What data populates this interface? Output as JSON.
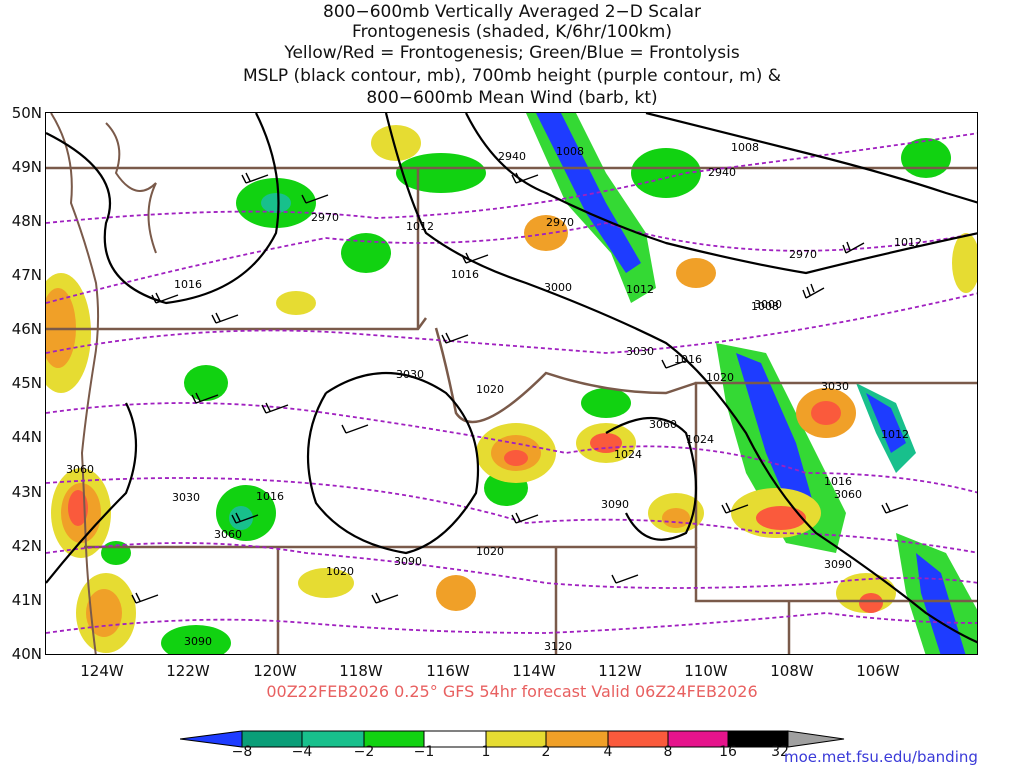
{
  "title_lines": [
    "800−600mb Vertically Averaged 2−D Scalar",
    "Frontogenesis (shaded, K/6hr/100km)",
    "Yellow/Red = Frontogenesis;  Green/Blue = Frontolysis",
    "MSLP (black contour, mb), 700mb height (purple contour, m) &",
    "800−600mb Mean Wind (barb, kt)"
  ],
  "lat_labels": [
    "50N",
    "49N",
    "48N",
    "47N",
    "46N",
    "45N",
    "44N",
    "43N",
    "42N",
    "41N",
    "40N"
  ],
  "lon_labels": [
    "124W",
    "122W",
    "120W",
    "118W",
    "116W",
    "114W",
    "112W",
    "110W",
    "108W",
    "106W"
  ],
  "valid_text": "00Z22FEB2026 0.25° GFS 54hr forecast Valid 06Z24FEB2026",
  "credit": "moe.met.fsu.edu/banding",
  "colorbar": {
    "labels": [
      "−8",
      "−4",
      "−2",
      "−1",
      "1",
      "2",
      "4",
      "8",
      "16",
      "32"
    ],
    "colors": [
      "#1e3cff",
      "#0a9e78",
      "#18c08c",
      "#11d211",
      "#ffffff",
      "#e6dc32",
      "#f0a028",
      "#fa5a3c",
      "#e6148c",
      "#000000",
      "#a0a0a0"
    ]
  },
  "contour_labels": {
    "mslp": [
      "1008",
      "1008",
      "1012",
      "1016",
      "1012",
      "1016",
      "1012",
      "1016",
      "1020",
      "1016",
      "1024",
      "1024",
      "1020",
      "1020",
      "1020",
      "1016",
      "1012",
      "1008"
    ],
    "height": [
      "2940",
      "2940",
      "2970",
      "2970",
      "2970",
      "3000",
      "3000",
      "3030",
      "3030",
      "3030",
      "3060",
      "3060",
      "3060",
      "3090",
      "3090",
      "3090",
      "3090",
      "3120",
      "3030",
      "3060"
    ]
  },
  "colors": {
    "mslp": "#000000",
    "height": "#a020c0",
    "borders": "#7a5a4a",
    "valid": "#e86060",
    "credit": "#3a3ad8"
  }
}
